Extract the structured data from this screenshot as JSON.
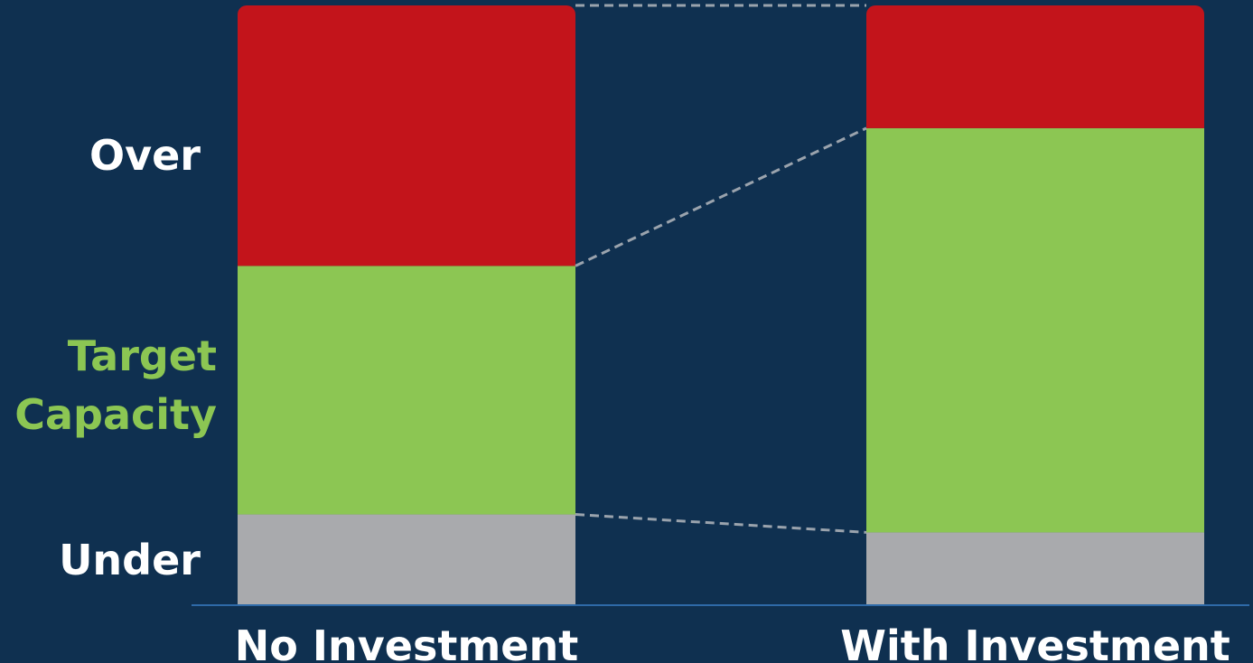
{
  "chart_data": {
    "type": "bar",
    "stacked": true,
    "categories": [
      "No Investment",
      "With Investment"
    ],
    "series": [
      {
        "name": "Under",
        "values": [
          15,
          12
        ],
        "color": "#a9aaad"
      },
      {
        "name": "Target Capacity",
        "values": [
          41.5,
          67.5
        ],
        "color": "#8cc653"
      },
      {
        "name": "Over",
        "values": [
          43.5,
          20.5
        ],
        "color": "#c3141b"
      }
    ],
    "band_labels": [
      {
        "text": "Over",
        "color": "#ffffff"
      },
      {
        "text": "Target\nCapacity",
        "color": "#8cc653"
      },
      {
        "text": "Under",
        "color": "#ffffff"
      }
    ],
    "ylim": [
      0,
      100
    ],
    "connectors": true,
    "background": "#0f3050",
    "axis_color": "#2e6aa8",
    "connector_color": "#9aa3ad"
  }
}
